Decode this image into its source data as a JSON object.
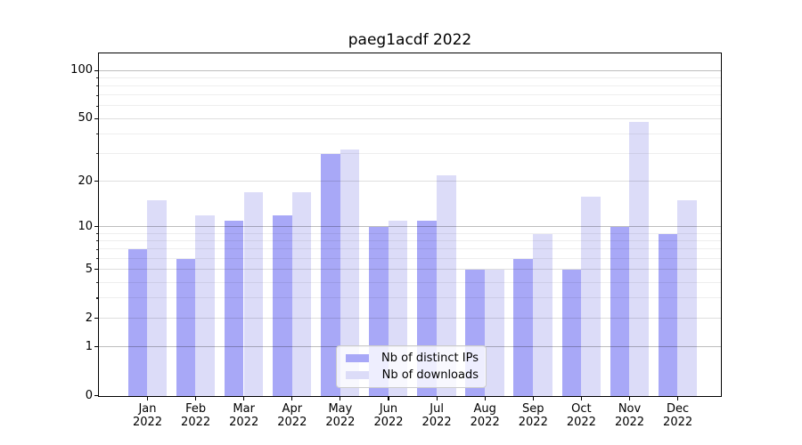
{
  "chart_data": {
    "type": "bar",
    "title": "paeg1acdf 2022",
    "categories": [
      "Jan 2022",
      "Feb 2022",
      "Mar 2022",
      "Apr 2022",
      "May 2022",
      "Jun 2022",
      "Jul 2022",
      "Aug 2022",
      "Sep 2022",
      "Oct 2022",
      "Nov 2022",
      "Dec 2022"
    ],
    "series": [
      {
        "name": "Nb of distinct IPs",
        "color": "#a8a8f7",
        "values": [
          7,
          6,
          11,
          12,
          30,
          10,
          11,
          5,
          6,
          5,
          10,
          9
        ]
      },
      {
        "name": "Nb of downloads",
        "color": "#dcdcf8",
        "values": [
          15,
          12,
          17,
          17,
          32,
          11,
          22,
          5,
          9,
          16,
          48,
          15
        ]
      }
    ],
    "yscale": "log1p",
    "yticks": [
      0,
      1,
      2,
      5,
      10,
      20,
      50,
      100
    ],
    "yticks_minor": [
      3,
      4,
      6,
      7,
      8,
      9,
      30,
      40,
      60,
      70,
      80,
      90
    ],
    "yticks_mid": [
      2,
      5,
      20,
      50
    ],
    "ylim": [
      0,
      128
    ],
    "grid": true,
    "legend_position": "lower center",
    "axis_color": "#000000",
    "background_color": "#ffffff"
  }
}
